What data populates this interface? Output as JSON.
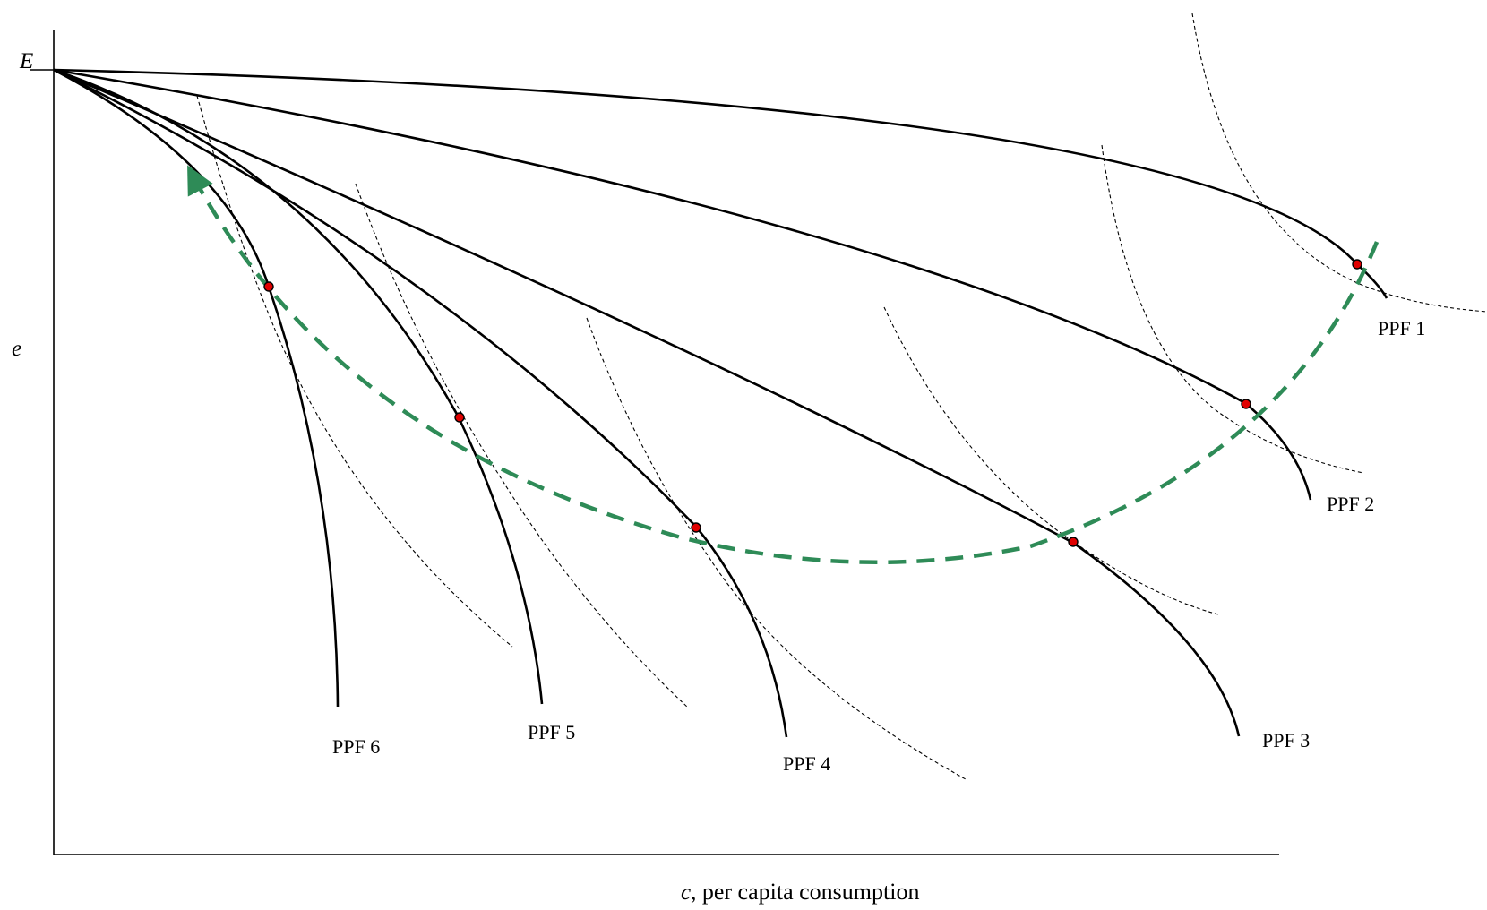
{
  "axes": {
    "y_axis_top_label": "E",
    "y_axis_label": "e",
    "x_axis_label_var": "c,",
    "x_axis_label_text": " per capita consumption"
  },
  "curves": [
    {
      "id": "ppf-1",
      "label": "PPF 1"
    },
    {
      "id": "ppf-2",
      "label": "PPF 2"
    },
    {
      "id": "ppf-3",
      "label": "PPF 3"
    },
    {
      "id": "ppf-4",
      "label": "PPF 4"
    },
    {
      "id": "ppf-5",
      "label": "PPF 5"
    },
    {
      "id": "ppf-6",
      "label": "PPF 6"
    }
  ],
  "colors": {
    "curve": "#000000",
    "indifference": "#000000",
    "path": "#2e8b57",
    "point": "#e00000"
  }
}
